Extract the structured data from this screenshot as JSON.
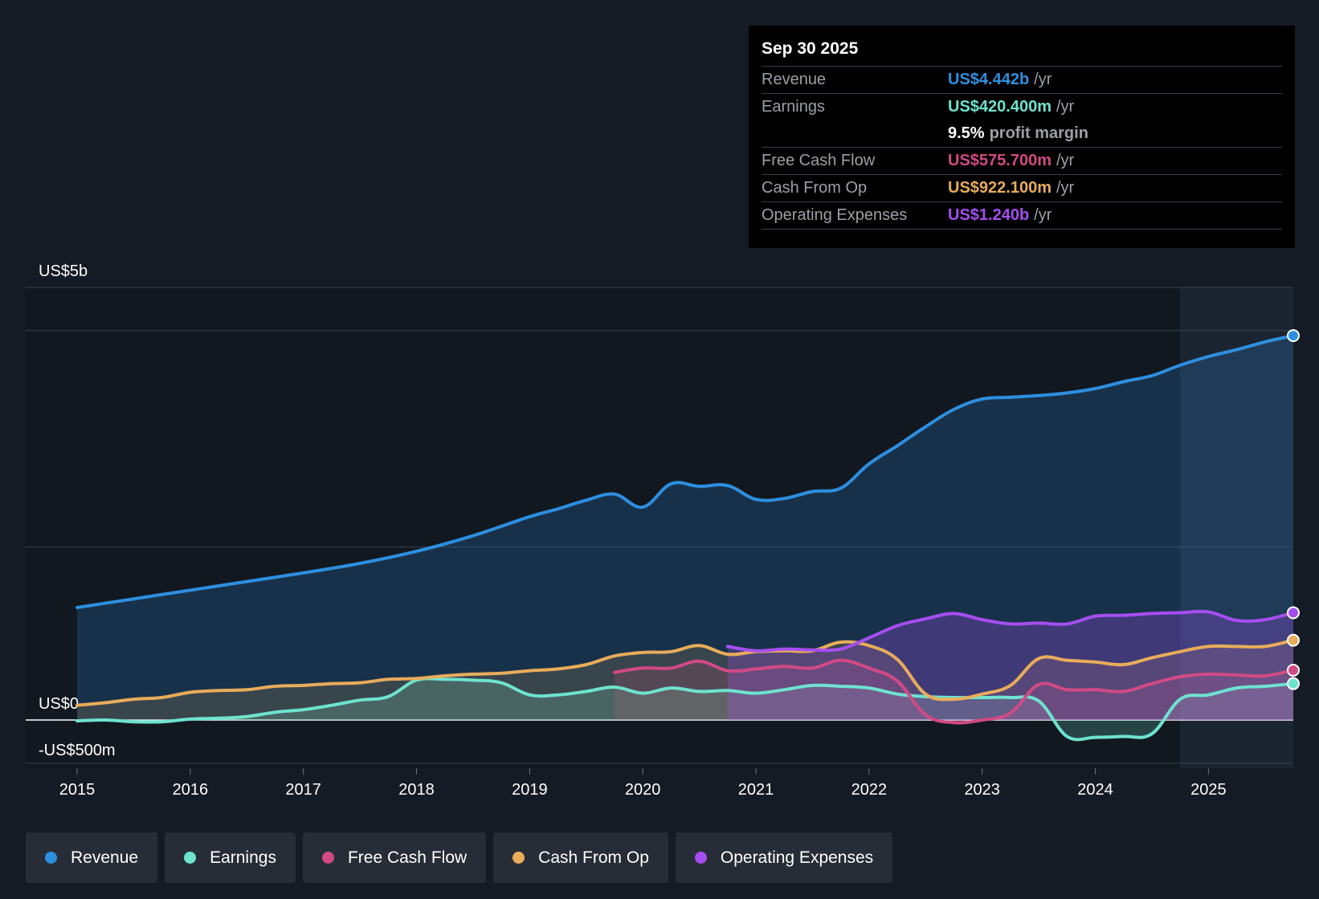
{
  "tooltip": {
    "date": "Sep 30 2025",
    "rows": [
      {
        "label": "Revenue",
        "value": "US$4.442b",
        "unit": "/yr"
      },
      {
        "label": "Earnings",
        "value": "US$420.400m",
        "unit": "/yr"
      },
      {
        "margin_value": "9.5%",
        "margin_label": "profit margin"
      },
      {
        "label": "Free Cash Flow",
        "value": "US$575.700m",
        "unit": "/yr"
      },
      {
        "label": "Cash From Op",
        "value": "US$922.100m",
        "unit": "/yr"
      },
      {
        "label": "Operating Expenses",
        "value": "US$1.240b",
        "unit": "/yr"
      }
    ]
  },
  "legend": [
    {
      "label": "Revenue",
      "color": "#2d8fe0"
    },
    {
      "label": "Earnings",
      "color": "#6ee3cf"
    },
    {
      "label": "Free Cash Flow",
      "color": "#d14a84"
    },
    {
      "label": "Cash From Op",
      "color": "#e8ac5a"
    },
    {
      "label": "Operating Expenses",
      "color": "#a64ef0"
    }
  ],
  "chart_data": {
    "type": "area",
    "title": "",
    "y_unit": "US$ millions",
    "ylim": [
      -500,
      5000
    ],
    "y_tick_labels": [
      {
        "value": 5000,
        "label": "US$5b"
      },
      {
        "value": 0,
        "label": "US$0"
      },
      {
        "value": -500,
        "label": "-US$500m"
      }
    ],
    "gridlines": [
      5000,
      4500,
      2000,
      0,
      -500
    ],
    "x_tick_labels": [
      "2015",
      "2016",
      "2017",
      "2018",
      "2019",
      "2020",
      "2021",
      "2022",
      "2023",
      "2024",
      "2025"
    ],
    "xlim": [
      2015.0,
      2025.75
    ],
    "highlight_start": 2024.75,
    "series": [
      {
        "name": "Revenue",
        "color": "#2d8fe0",
        "points": [
          [
            2015.0,
            1300
          ],
          [
            2015.5,
            1400
          ],
          [
            2016.0,
            1500
          ],
          [
            2016.5,
            1600
          ],
          [
            2017.0,
            1700
          ],
          [
            2017.5,
            1810
          ],
          [
            2018.0,
            1950
          ],
          [
            2018.5,
            2130
          ],
          [
            2019.0,
            2350
          ],
          [
            2019.25,
            2440
          ],
          [
            2019.5,
            2540
          ],
          [
            2019.75,
            2610
          ],
          [
            2020.0,
            2460
          ],
          [
            2020.25,
            2730
          ],
          [
            2020.5,
            2700
          ],
          [
            2020.75,
            2710
          ],
          [
            2021.0,
            2550
          ],
          [
            2021.25,
            2560
          ],
          [
            2021.5,
            2640
          ],
          [
            2021.75,
            2680
          ],
          [
            2022.0,
            2960
          ],
          [
            2022.25,
            3170
          ],
          [
            2022.5,
            3390
          ],
          [
            2022.75,
            3590
          ],
          [
            2023.0,
            3710
          ],
          [
            2023.25,
            3730
          ],
          [
            2023.5,
            3750
          ],
          [
            2023.75,
            3780
          ],
          [
            2024.0,
            3830
          ],
          [
            2024.25,
            3910
          ],
          [
            2024.5,
            3980
          ],
          [
            2024.75,
            4100
          ],
          [
            2025.0,
            4200
          ],
          [
            2025.25,
            4280
          ],
          [
            2025.5,
            4370
          ],
          [
            2025.75,
            4442
          ]
        ]
      },
      {
        "name": "Earnings",
        "color": "#6ee3cf",
        "points": [
          [
            2015.0,
            -10
          ],
          [
            2015.25,
            0
          ],
          [
            2015.5,
            -20
          ],
          [
            2015.75,
            -20
          ],
          [
            2016.0,
            10
          ],
          [
            2016.25,
            20
          ],
          [
            2016.5,
            40
          ],
          [
            2016.75,
            90
          ],
          [
            2017.0,
            120
          ],
          [
            2017.25,
            170
          ],
          [
            2017.5,
            230
          ],
          [
            2017.75,
            270
          ],
          [
            2018.0,
            460
          ],
          [
            2018.25,
            470
          ],
          [
            2018.5,
            460
          ],
          [
            2018.75,
            430
          ],
          [
            2019.0,
            290
          ],
          [
            2019.25,
            290
          ],
          [
            2019.5,
            330
          ],
          [
            2019.75,
            380
          ],
          [
            2020.0,
            310
          ],
          [
            2020.25,
            370
          ],
          [
            2020.5,
            330
          ],
          [
            2020.75,
            340
          ],
          [
            2021.0,
            310
          ],
          [
            2021.25,
            350
          ],
          [
            2021.5,
            400
          ],
          [
            2021.75,
            390
          ],
          [
            2022.0,
            370
          ],
          [
            2022.25,
            300
          ],
          [
            2022.5,
            270
          ],
          [
            2022.75,
            260
          ],
          [
            2023.0,
            260
          ],
          [
            2023.25,
            260
          ],
          [
            2023.5,
            220
          ],
          [
            2023.75,
            -190
          ],
          [
            2024.0,
            -200
          ],
          [
            2024.25,
            -190
          ],
          [
            2024.5,
            -160
          ],
          [
            2024.75,
            240
          ],
          [
            2025.0,
            290
          ],
          [
            2025.25,
            370
          ],
          [
            2025.5,
            390
          ],
          [
            2025.75,
            420.4
          ]
        ]
      },
      {
        "name": "Free Cash Flow",
        "color": "#d14a84",
        "points": [
          [
            2019.75,
            550
          ],
          [
            2020.0,
            600
          ],
          [
            2020.25,
            600
          ],
          [
            2020.5,
            680
          ],
          [
            2020.75,
            570
          ],
          [
            2021.0,
            590
          ],
          [
            2021.25,
            620
          ],
          [
            2021.5,
            600
          ],
          [
            2021.75,
            690
          ],
          [
            2022.0,
            600
          ],
          [
            2022.25,
            450
          ],
          [
            2022.5,
            60
          ],
          [
            2022.75,
            -30
          ],
          [
            2023.0,
            0
          ],
          [
            2023.25,
            80
          ],
          [
            2023.5,
            410
          ],
          [
            2023.75,
            350
          ],
          [
            2024.0,
            350
          ],
          [
            2024.25,
            330
          ],
          [
            2024.5,
            420
          ],
          [
            2024.75,
            500
          ],
          [
            2025.0,
            530
          ],
          [
            2025.25,
            520
          ],
          [
            2025.5,
            510
          ],
          [
            2025.75,
            575.7
          ]
        ]
      },
      {
        "name": "Cash From Op",
        "color": "#e8ac5a",
        "points": [
          [
            2015.0,
            170
          ],
          [
            2015.25,
            200
          ],
          [
            2015.5,
            240
          ],
          [
            2015.75,
            260
          ],
          [
            2016.0,
            320
          ],
          [
            2016.25,
            340
          ],
          [
            2016.5,
            350
          ],
          [
            2016.75,
            390
          ],
          [
            2017.0,
            400
          ],
          [
            2017.25,
            420
          ],
          [
            2017.5,
            430
          ],
          [
            2017.75,
            470
          ],
          [
            2018.0,
            480
          ],
          [
            2018.25,
            510
          ],
          [
            2018.5,
            530
          ],
          [
            2018.75,
            540
          ],
          [
            2019.0,
            570
          ],
          [
            2019.25,
            590
          ],
          [
            2019.5,
            640
          ],
          [
            2019.75,
            740
          ],
          [
            2020.0,
            780
          ],
          [
            2020.25,
            790
          ],
          [
            2020.5,
            860
          ],
          [
            2020.75,
            760
          ],
          [
            2021.0,
            790
          ],
          [
            2021.25,
            800
          ],
          [
            2021.5,
            800
          ],
          [
            2021.75,
            900
          ],
          [
            2022.0,
            860
          ],
          [
            2022.25,
            700
          ],
          [
            2022.5,
            300
          ],
          [
            2022.75,
            240
          ],
          [
            2023.0,
            300
          ],
          [
            2023.25,
            400
          ],
          [
            2023.5,
            710
          ],
          [
            2023.75,
            690
          ],
          [
            2024.0,
            670
          ],
          [
            2024.25,
            640
          ],
          [
            2024.5,
            720
          ],
          [
            2024.75,
            790
          ],
          [
            2025.0,
            850
          ],
          [
            2025.25,
            850
          ],
          [
            2025.5,
            850
          ],
          [
            2025.75,
            922.1
          ]
        ]
      },
      {
        "name": "Operating Expenses",
        "color": "#a64ef0",
        "points": [
          [
            2020.75,
            850
          ],
          [
            2021.0,
            800
          ],
          [
            2021.25,
            820
          ],
          [
            2021.5,
            810
          ],
          [
            2021.75,
            820
          ],
          [
            2022.0,
            950
          ],
          [
            2022.25,
            1090
          ],
          [
            2022.5,
            1170
          ],
          [
            2022.75,
            1230
          ],
          [
            2023.0,
            1160
          ],
          [
            2023.25,
            1110
          ],
          [
            2023.5,
            1120
          ],
          [
            2023.75,
            1110
          ],
          [
            2024.0,
            1200
          ],
          [
            2024.25,
            1210
          ],
          [
            2024.5,
            1230
          ],
          [
            2024.75,
            1240
          ],
          [
            2025.0,
            1250
          ],
          [
            2025.25,
            1150
          ],
          [
            2025.5,
            1160
          ],
          [
            2025.75,
            1240
          ]
        ]
      }
    ]
  }
}
